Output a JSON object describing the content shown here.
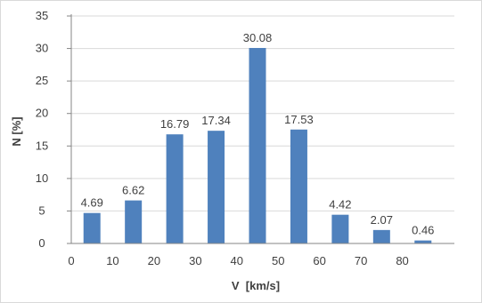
{
  "chart_data": {
    "type": "bar",
    "title": "",
    "xlabel": "V  [km/s]",
    "ylabel": "N [%]",
    "x": [
      5,
      15,
      25,
      35,
      45,
      55,
      65,
      75,
      85
    ],
    "values": [
      4.69,
      6.62,
      16.79,
      17.34,
      30.08,
      17.53,
      4.42,
      2.07,
      0.46
    ],
    "data_labels": [
      "4.69",
      "6.62",
      "16.79",
      "17.34",
      "30.08",
      "17.53",
      "4.42",
      "2.07",
      "0.46"
    ],
    "xlim": [
      0,
      90
    ],
    "ylim": [
      0,
      35
    ],
    "xticks": [
      0,
      10,
      20,
      30,
      40,
      50,
      60,
      70,
      80
    ],
    "yticks": [
      0,
      5,
      10,
      15,
      20,
      25,
      30,
      35
    ],
    "grid": true,
    "bar_color": "#4f81bd",
    "grid_color": "#d9d9d9",
    "axis_color": "#868686",
    "text_color": "#404040"
  }
}
